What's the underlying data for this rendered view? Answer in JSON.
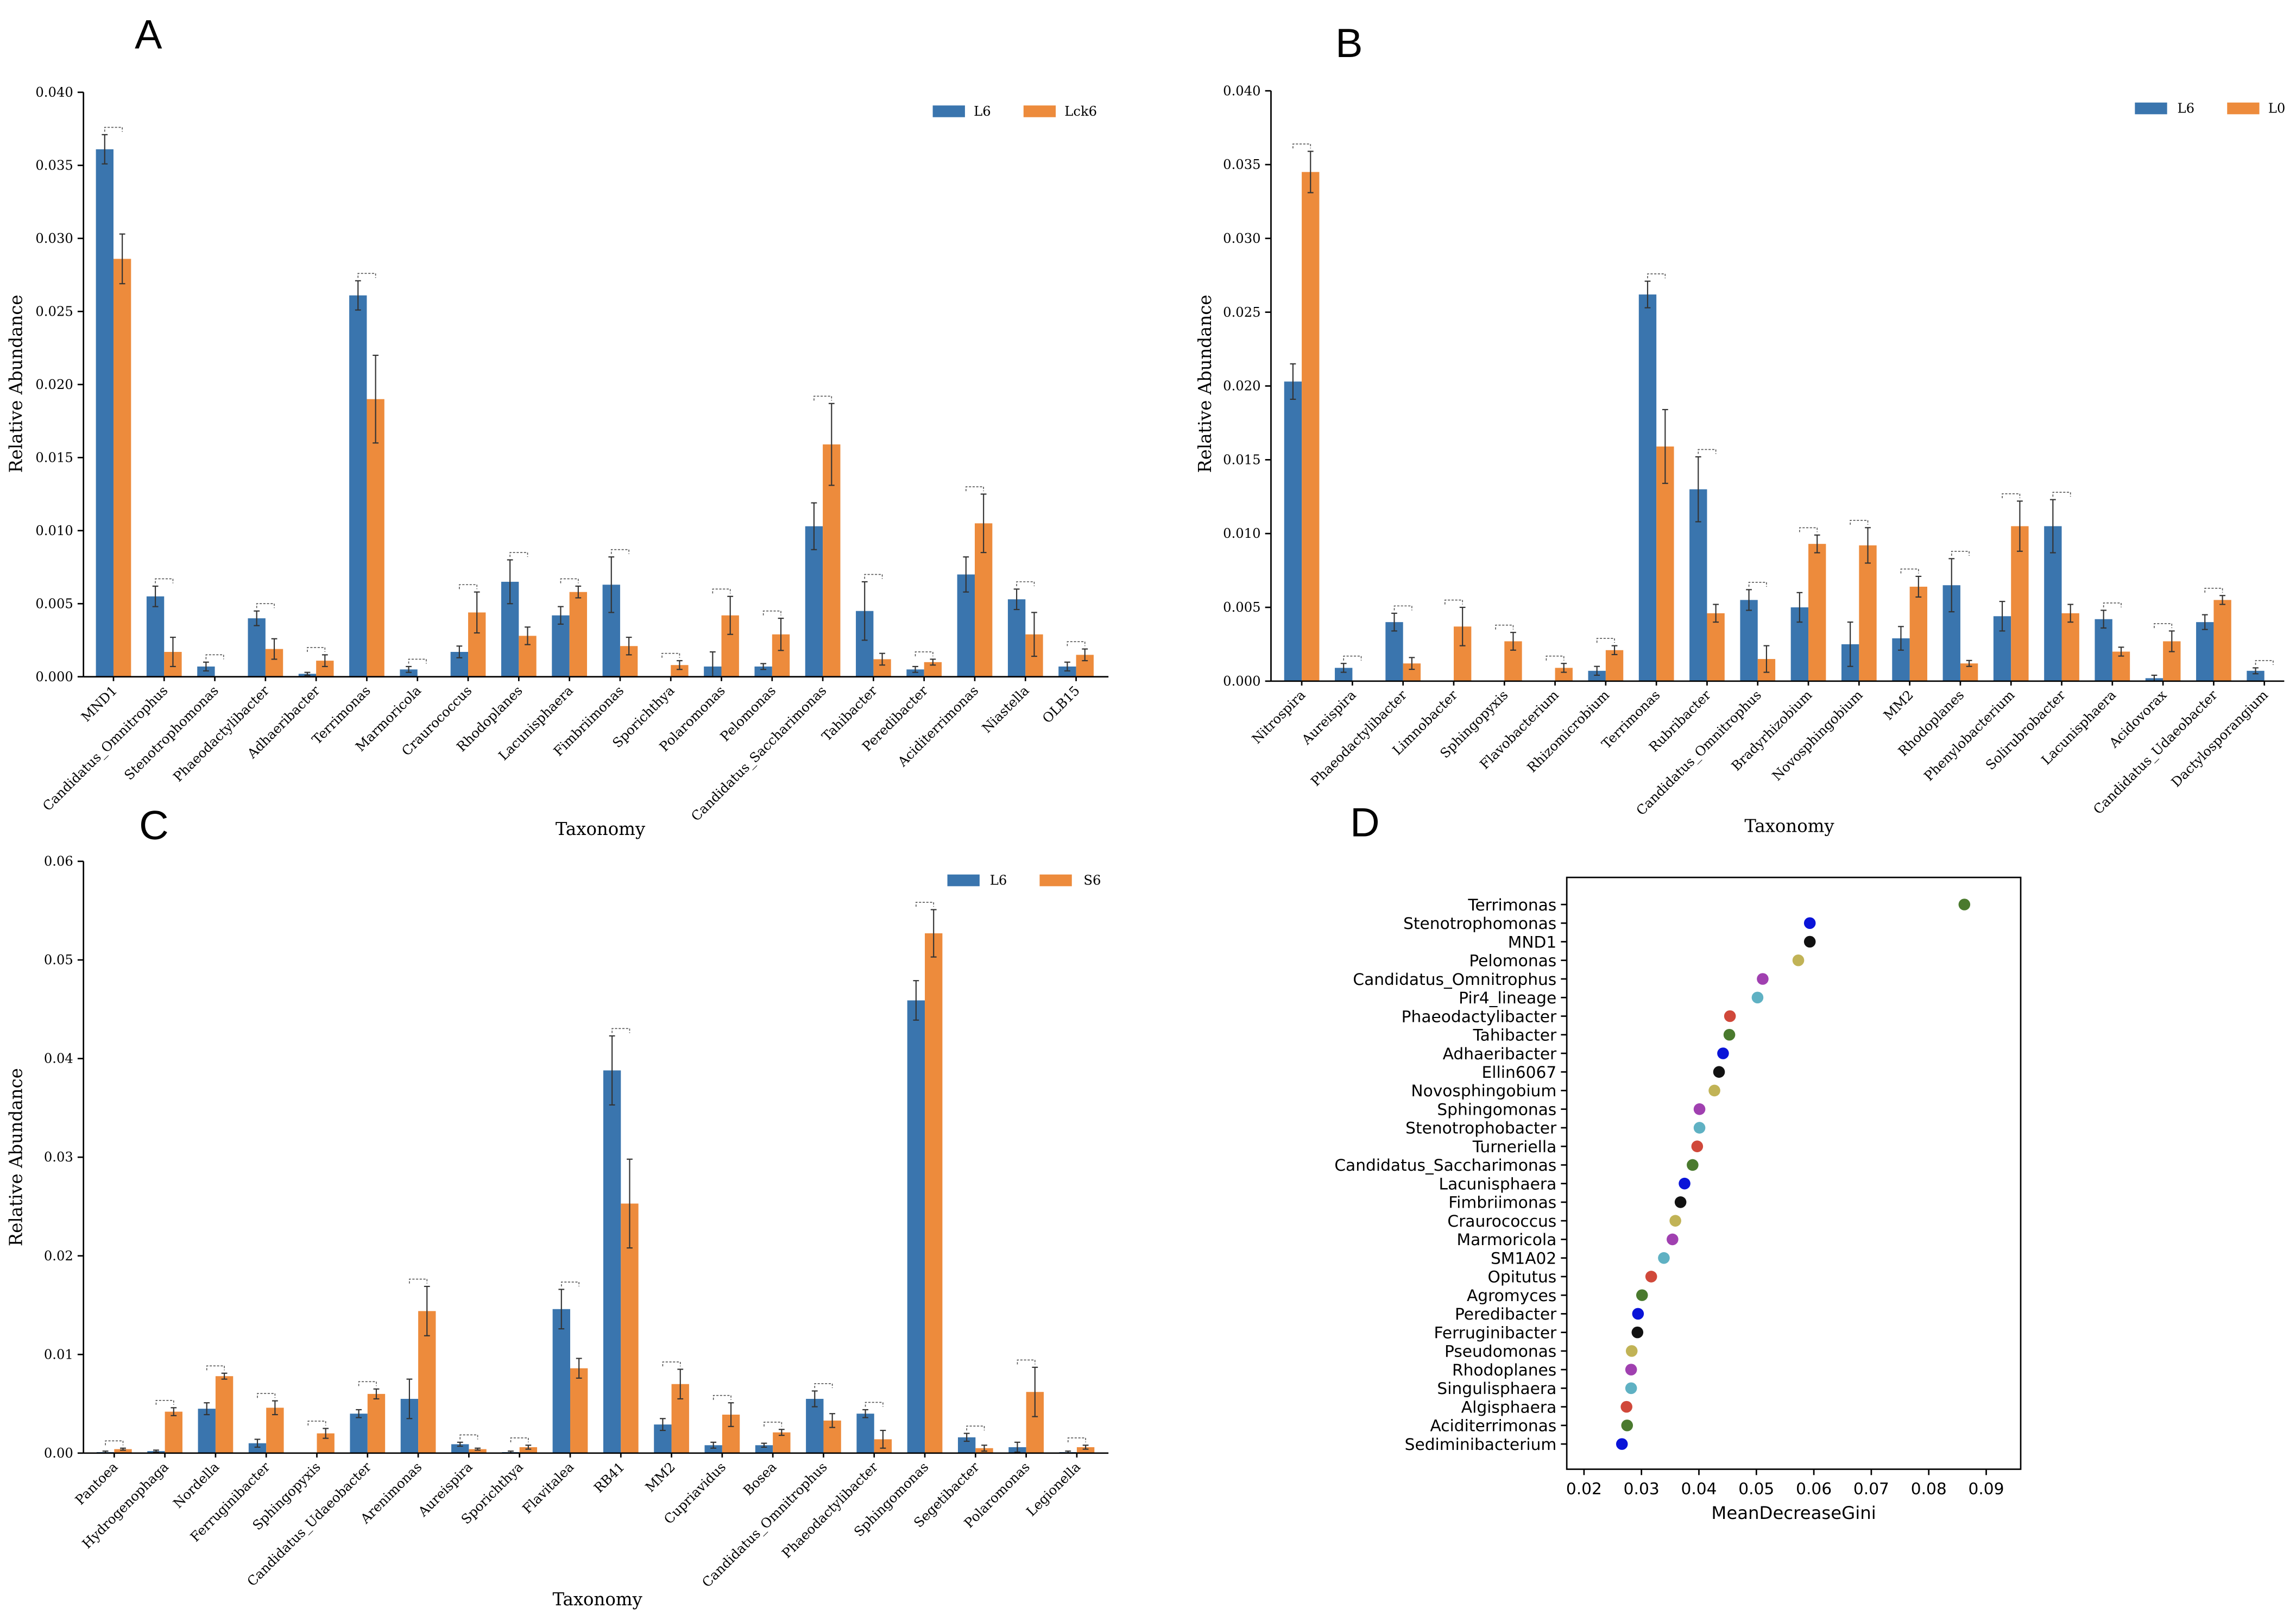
{
  "colors": {
    "series1": "#3a75ae",
    "series2": "#ed8b3c",
    "axis": "#000000",
    "sig": "#555555"
  },
  "chart_data": [
    {
      "id": "A",
      "type": "bar",
      "letter": "A",
      "xlabel": "Taxonomy",
      "ylabel": "Relative Abundance",
      "ylim": [
        0,
        0.04
      ],
      "yticks": [
        "0.000",
        "0.005",
        "0.010",
        "0.015",
        "0.020",
        "0.025",
        "0.030",
        "0.035",
        "0.040"
      ],
      "categories": [
        "MND1",
        "Candidatus_Omnitrophus",
        "Stenotrophomonas",
        "Phaeodactylibacter",
        "Adhaeribacter",
        "Terrimonas",
        "Marmoricola",
        "Craurococcus",
        "Rhodoplanes",
        "Lacunisphaera",
        "Fimbriimonas",
        "Sporichthya",
        "Polaromonas",
        "Pelomonas",
        "Candidatus_Saccharimonas",
        "Tahibacter",
        "Peredibacter",
        "Aciditerrimonas",
        "Niastella",
        "OLB15"
      ],
      "series": [
        {
          "name": "L6",
          "values": [
            0.0361,
            0.0055,
            0.0007,
            0.004,
            0.0002,
            0.0261,
            0.0005,
            0.0017,
            0.0065,
            0.0042,
            0.0063,
            0.0,
            0.0007,
            0.0007,
            0.0103,
            0.0045,
            0.0005,
            0.007,
            0.0053,
            0.0007
          ],
          "errors": [
            0.001,
            0.0007,
            0.0003,
            0.0005,
            0.0001,
            0.001,
            0.0002,
            0.0004,
            0.0015,
            0.0006,
            0.0019,
            0.0,
            0.001,
            0.0002,
            0.0016,
            0.002,
            0.0002,
            0.0012,
            0.0007,
            0.0003
          ]
        },
        {
          "name": "Lck6",
          "values": [
            0.0286,
            0.0017,
            0.0,
            0.0019,
            0.0011,
            0.019,
            0.0,
            0.0044,
            0.0028,
            0.0058,
            0.0021,
            0.0008,
            0.0042,
            0.0029,
            0.0159,
            0.0012,
            0.001,
            0.0105,
            0.0029,
            0.0015
          ],
          "errors": [
            0.0017,
            0.001,
            0.0,
            0.0007,
            0.0004,
            0.003,
            0.0,
            0.0014,
            0.0006,
            0.0004,
            0.0006,
            0.0003,
            0.0013,
            0.0011,
            0.0028,
            0.0004,
            0.0002,
            0.002,
            0.0015,
            0.0004
          ]
        }
      ]
    },
    {
      "id": "B",
      "type": "bar",
      "letter": "B",
      "xlabel": "Taxonomy",
      "ylabel": "Relative Abundance",
      "ylim": [
        0,
        0.04
      ],
      "yticks": [
        "0.000",
        "0.005",
        "0.010",
        "0.015",
        "0.020",
        "0.025",
        "0.030",
        "0.035",
        "0.040"
      ],
      "categories": [
        "Nitrospira",
        "Aureispira",
        "Phaeodactylibacter",
        "Limnobacter",
        "Sphingopyxis",
        "Flavobacterium",
        "Rhizomicrobium",
        "Terrimonas",
        "Rubribacter",
        "Candidatus_Omnitrophus",
        "Bradyrhizobium",
        "Novosphingobium",
        "MM2",
        "Rhodoplanes",
        "Phenylobacterium",
        "Solirubrobacter",
        "Lacunisphaera",
        "Acidovorax",
        "Candidatus_Udaeobacter",
        "Dactylosporangium"
      ],
      "series": [
        {
          "name": "L6",
          "values": [
            0.0203,
            0.0009,
            0.004,
            0.0,
            0.0,
            0.0,
            0.0007,
            0.0262,
            0.013,
            0.0055,
            0.005,
            0.0025,
            0.0029,
            0.0065,
            0.0044,
            0.0105,
            0.0042,
            0.0002,
            0.004,
            0.0007
          ],
          "errors": [
            0.0012,
            0.0003,
            0.0006,
            0.0,
            0.0,
            0.0,
            0.0003,
            0.0009,
            0.0022,
            0.0007,
            0.001,
            0.0015,
            0.0008,
            0.0018,
            0.001,
            0.0018,
            0.0006,
            0.0002,
            0.0005,
            0.0002
          ]
        },
        {
          "name": "L0",
          "values": [
            0.0345,
            0.0,
            0.0012,
            0.0037,
            0.0027,
            0.0009,
            0.0021,
            0.0159,
            0.0046,
            0.0015,
            0.0093,
            0.0092,
            0.0064,
            0.0012,
            0.0105,
            0.0046,
            0.002,
            0.0027,
            0.0055,
            0.0
          ],
          "errors": [
            0.0014,
            0.0,
            0.0004,
            0.0013,
            0.0006,
            0.0003,
            0.0003,
            0.0025,
            0.0006,
            0.0009,
            0.0006,
            0.0012,
            0.0007,
            0.0002,
            0.0017,
            0.0006,
            0.0003,
            0.0007,
            0.0003,
            0.0
          ]
        }
      ]
    },
    {
      "id": "C",
      "type": "bar",
      "letter": "C",
      "xlabel": "Taxonomy",
      "ylabel": "Relative Abundance",
      "ylim": [
        0,
        0.06
      ],
      "yticks": [
        "0.00",
        "0.01",
        "0.02",
        "0.03",
        "0.04",
        "0.05",
        "0.06"
      ],
      "categories": [
        "Pantoea",
        "Hydrogenophaga",
        "Nordella",
        "Ferruginibacter",
        "Sphingopyxis",
        "Candidatus_Udaeobacter",
        "Arenimonas",
        "Aureispira",
        "Sporichthya",
        "Flavitalea",
        "RB41",
        "MM2",
        "Cupriavidus",
        "Bosea",
        "Candidatus_Omnitrophus",
        "Phaeodactylibacter",
        "Sphingomonas",
        "Segetibacter",
        "Polaromonas",
        "Legionella"
      ],
      "series": [
        {
          "name": "L6",
          "values": [
            0.0001,
            0.0002,
            0.0045,
            0.001,
            0.0,
            0.004,
            0.0055,
            0.0009,
            0.0001,
            0.0146,
            0.0388,
            0.0029,
            0.0008,
            0.0008,
            0.0055,
            0.004,
            0.0459,
            0.0016,
            0.0006,
            0.0001
          ],
          "errors": [
            0.0001,
            0.0001,
            0.0006,
            0.0004,
            0.0,
            0.0004,
            0.002,
            0.0002,
            0.0001,
            0.002,
            0.0035,
            0.0006,
            0.0003,
            0.0002,
            0.0008,
            0.0004,
            0.002,
            0.0004,
            0.0005,
            0.0001
          ]
        },
        {
          "name": "S6",
          "values": [
            0.0004,
            0.0042,
            0.0078,
            0.0046,
            0.002,
            0.006,
            0.0144,
            0.0004,
            0.0006,
            0.0086,
            0.0253,
            0.007,
            0.0039,
            0.0021,
            0.0033,
            0.0014,
            0.0527,
            0.0005,
            0.0062,
            0.0006
          ],
          "errors": [
            0.0001,
            0.0004,
            0.0003,
            0.0007,
            0.0005,
            0.0005,
            0.0025,
            0.0001,
            0.0002,
            0.001,
            0.0045,
            0.0015,
            0.0012,
            0.0003,
            0.0007,
            0.0009,
            0.0024,
            0.0003,
            0.0025,
            0.0002
          ]
        }
      ]
    },
    {
      "id": "D",
      "type": "scatter",
      "letter": "D",
      "xlabel": "MeanDecreaseGini",
      "xlim": [
        0.017,
        0.096
      ],
      "xticks": [
        "0.02",
        "0.03",
        "0.04",
        "0.05",
        "0.06",
        "0.07",
        "0.08",
        "0.09"
      ],
      "categories": [
        "Terrimonas",
        "Stenotrophomonas",
        "MND1",
        "Pelomonas",
        "Candidatus_Omnitrophus",
        "Pir4_lineage",
        "Phaeodactylibacter",
        "Tahibacter",
        "Adhaeribacter",
        "Ellin6067",
        "Novosphingobium",
        "Sphingomonas",
        "Stenotrophobacter",
        "Turneriella",
        "Candidatus_Saccharimonas",
        "Lacunisphaera",
        "Fimbriimonas",
        "Craurococcus",
        "Marmoricola",
        "SM1A02",
        "Opitutus",
        "Agromyces",
        "Peredibacter",
        "Ferruginibacter",
        "Pseudomonas",
        "Rhodoplanes",
        "Singulisphaera",
        "Algisphaera",
        "Aciditerrimonas",
        "Sediminibacterium"
      ],
      "values": [
        0.0862,
        0.0593,
        0.0593,
        0.0573,
        0.0511,
        0.0502,
        0.0454,
        0.0453,
        0.0442,
        0.0435,
        0.0427,
        0.0401,
        0.0401,
        0.0397,
        0.0389,
        0.0375,
        0.0368,
        0.0359,
        0.0354,
        0.0339,
        0.0317,
        0.0301,
        0.0294,
        0.0293,
        0.0283,
        0.0282,
        0.0282,
        0.0274,
        0.0275,
        0.0266
      ],
      "point_colors": [
        "#4a7a2e",
        "#0a14d8",
        "#111111",
        "#c1b356",
        "#a040b0",
        "#5fb1c3",
        "#d0483a",
        "#4a7a2e",
        "#0a14d8",
        "#111111",
        "#c1b356",
        "#a040b0",
        "#5fb1c3",
        "#d0483a",
        "#4a7a2e",
        "#0a14d8",
        "#111111",
        "#c1b356",
        "#a040b0",
        "#5fb1c3",
        "#d0483a",
        "#4a7a2e",
        "#0a14d8",
        "#111111",
        "#c1b356",
        "#a040b0",
        "#5fb1c3",
        "#d0483a",
        "#4a7a2e",
        "#0a14d8"
      ]
    }
  ]
}
